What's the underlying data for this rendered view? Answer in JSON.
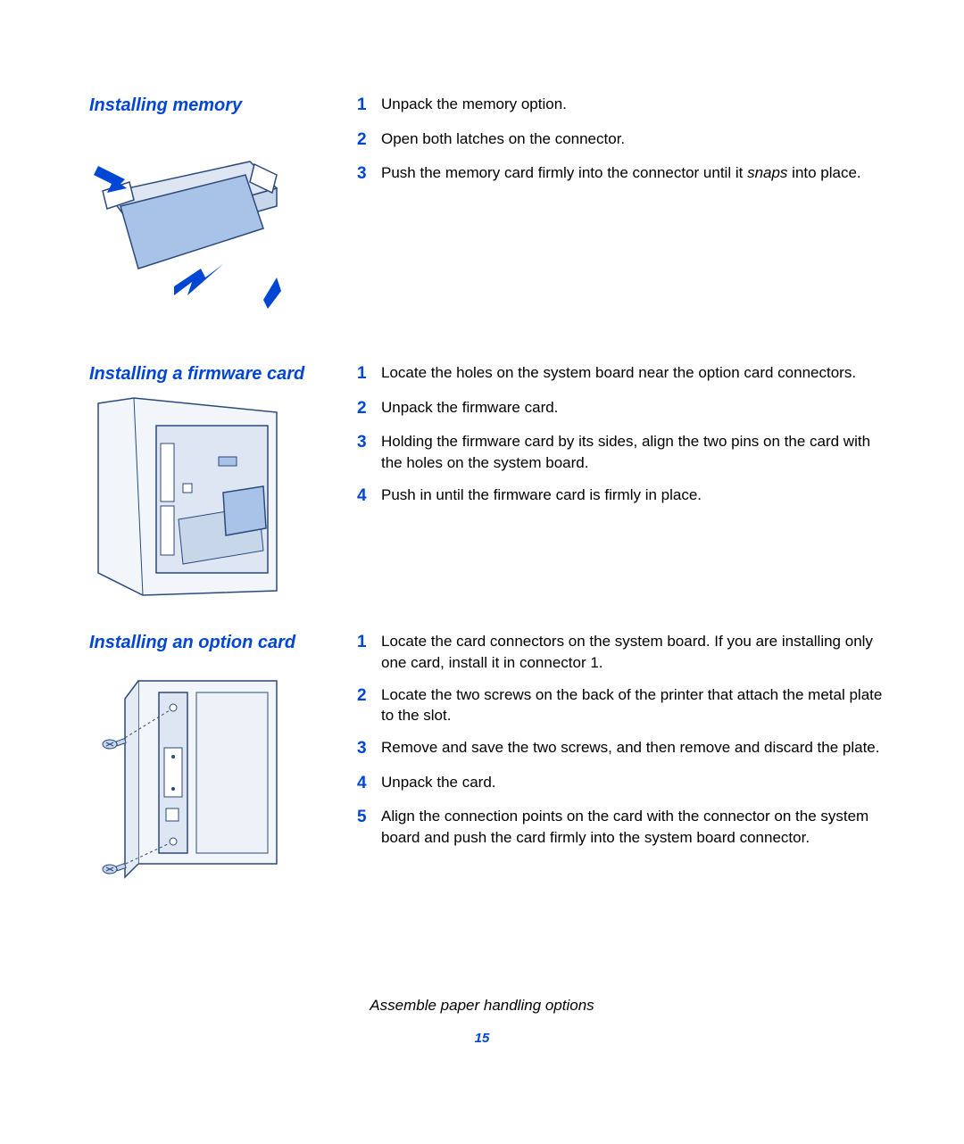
{
  "colors": {
    "heading": "#0046d5",
    "step_number": "#0046d5",
    "illustration_fill": "#a9c3e8",
    "illustration_stroke": "#2b4a7a",
    "illustration_light": "#dde6f2",
    "illustration_accent": "#0046d5",
    "page_number": "#0046d5",
    "body_text": "#000000"
  },
  "sections": [
    {
      "heading": "Installing memory",
      "steps": [
        {
          "num": "1",
          "text": "Unpack the memory option."
        },
        {
          "num": "2",
          "text": "Open both latches on the connector."
        },
        {
          "num": "3",
          "text_html": "Push the memory card firmly into the connector until it <span class='em'>snaps</span> into place."
        }
      ]
    },
    {
      "heading": "Installing a firmware card",
      "steps": [
        {
          "num": "1",
          "text": "Locate the holes on the system board near the option card connectors."
        },
        {
          "num": "2",
          "text": "Unpack the firmware card."
        },
        {
          "num": "3",
          "text": "Holding the firmware card by its sides, align the two pins on the card with the holes on the system board."
        },
        {
          "num": "4",
          "text": "Push in until the firmware card is firmly in place."
        }
      ]
    },
    {
      "heading": "Installing an option card",
      "steps": [
        {
          "num": "1",
          "text": "Locate the card connectors on the system board. If you are installing only one card, install it in connector 1."
        },
        {
          "num": "2",
          "text": "Locate the two screws on the back of the printer that attach the metal plate to the slot."
        },
        {
          "num": "3",
          "text": "Remove and save the two screws, and then remove and discard the plate."
        },
        {
          "num": "4",
          "text": "Unpack the card."
        },
        {
          "num": "5",
          "text": "Align the connection points on the card with the connector on the system board and push the card firmly into the system board connector."
        }
      ]
    }
  ],
  "footer": {
    "title": "Assemble paper handling options",
    "page": "15"
  }
}
